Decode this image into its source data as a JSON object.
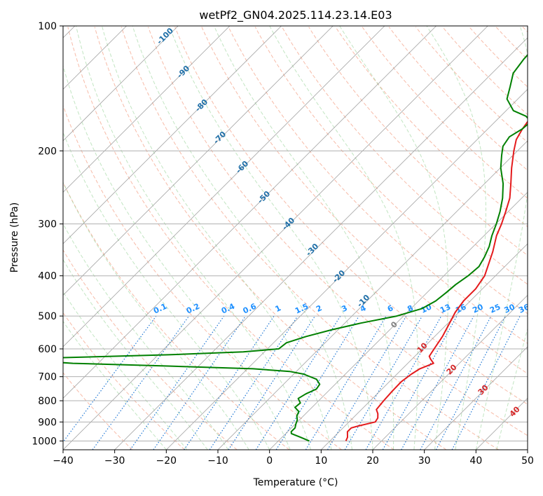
{
  "chart_data": {
    "type": "skew-t",
    "title": "wetPf2_GN04.2025.114.23.14.E03",
    "xlabel": "Temperature (°C)",
    "ylabel": "Pressure (hPa)",
    "xlim": [
      -40,
      50
    ],
    "ylim": [
      1050,
      100
    ],
    "y_scale": "log",
    "grid": true,
    "x_ticks": [
      "−40",
      "−30",
      "−20",
      "−10",
      "0",
      "10",
      "20",
      "30",
      "40",
      "50"
    ],
    "y_ticks": [
      "100",
      "200",
      "300",
      "400",
      "500",
      "600",
      "700",
      "800",
      "900",
      "1000"
    ],
    "series": [
      {
        "role": "temperature",
        "color": "#e41a1c",
        "points": [
          [
            1000,
            13.1
          ],
          [
            980,
            12.7
          ],
          [
            950,
            11.6
          ],
          [
            930,
            11.6
          ],
          [
            920,
            12.6
          ],
          [
            900,
            15.1
          ],
          [
            880,
            14.8
          ],
          [
            860,
            14.0
          ],
          [
            840,
            12.9
          ],
          [
            800,
            12.6
          ],
          [
            760,
            12.4
          ],
          [
            720,
            12.3
          ],
          [
            690,
            12.8
          ],
          [
            670,
            13.4
          ],
          [
            650,
            15.0
          ],
          [
            635,
            13.6
          ],
          [
            625,
            12.8
          ],
          [
            600,
            12.3
          ],
          [
            560,
            11.5
          ],
          [
            520,
            10.3
          ],
          [
            490,
            9.3
          ],
          [
            460,
            8.7
          ],
          [
            430,
            8.7
          ],
          [
            400,
            7.9
          ],
          [
            370,
            6.1
          ],
          [
            350,
            4.8
          ],
          [
            320,
            2.4
          ],
          [
            300,
            1.1
          ],
          [
            280,
            -0.5
          ],
          [
            260,
            -2.3
          ],
          [
            240,
            -4.9
          ],
          [
            220,
            -7.8
          ],
          [
            200,
            -10.7
          ],
          [
            188,
            -12.4
          ],
          [
            177,
            -13.3
          ],
          [
            170,
            -13.7
          ],
          [
            160,
            -12.9
          ],
          [
            150,
            -9.2
          ],
          [
            140,
            -6.1
          ],
          [
            130,
            -2.0
          ],
          [
            120,
            1.5
          ],
          [
            110,
            2.5
          ],
          [
            100,
            3.5
          ]
        ]
      },
      {
        "role": "dewpoint",
        "color": "#008000",
        "points": [
          [
            1000,
            6.0
          ],
          [
            980,
            3.6
          ],
          [
            960,
            1.1
          ],
          [
            950,
            0.7
          ],
          [
            930,
            0.7
          ],
          [
            910,
            0.1
          ],
          [
            890,
            -0.4
          ],
          [
            870,
            -1.3
          ],
          [
            850,
            -1.7
          ],
          [
            830,
            -3.3
          ],
          [
            810,
            -3.1
          ],
          [
            790,
            -4.4
          ],
          [
            770,
            -3.8
          ],
          [
            750,
            -2.7
          ],
          [
            730,
            -3.0
          ],
          [
            710,
            -4.6
          ],
          [
            690,
            -8.1
          ],
          [
            680,
            -11.3
          ],
          [
            670,
            -18.9
          ],
          [
            660,
            -35.9
          ],
          [
            650,
            -54.9
          ],
          [
            640,
            -63.7
          ],
          [
            630,
            -58.3
          ],
          [
            620,
            -38.0
          ],
          [
            610,
            -24.1
          ],
          [
            600,
            -17.8
          ],
          [
            580,
            -17.5
          ],
          [
            560,
            -14.9
          ],
          [
            540,
            -11.3
          ],
          [
            520,
            -6.9
          ],
          [
            500,
            -1.3
          ],
          [
            480,
            2.1
          ],
          [
            460,
            3.3
          ],
          [
            440,
            3.7
          ],
          [
            420,
            4.0
          ],
          [
            400,
            4.7
          ],
          [
            380,
            5.0
          ],
          [
            360,
            4.2
          ],
          [
            340,
            3.1
          ],
          [
            320,
            1.5
          ],
          [
            300,
            0.1
          ],
          [
            280,
            -1.6
          ],
          [
            260,
            -3.7
          ],
          [
            240,
            -6.4
          ],
          [
            220,
            -9.9
          ],
          [
            205,
            -12.2
          ],
          [
            195,
            -13.7
          ],
          [
            185,
            -14.3
          ],
          [
            177,
            -13.3
          ],
          [
            170,
            -13.1
          ],
          [
            165,
            -15.1
          ],
          [
            160,
            -18.6
          ],
          [
            150,
            -22.1
          ],
          [
            140,
            -23.9
          ],
          [
            130,
            -25.9
          ],
          [
            120,
            -26.6
          ],
          [
            110,
            -26.9
          ],
          [
            100,
            -27.9
          ]
        ]
      }
    ],
    "dry_adiabat_labels": [
      "-100",
      "-90",
      "-80",
      "-70",
      "-60",
      "-50",
      "-40",
      "-30",
      "-20",
      "-10"
    ],
    "moist_adiabat_labels": [
      "0",
      "10",
      "20",
      "30",
      "40"
    ],
    "mixing_ratio_labels": [
      "0.1",
      "0.2",
      "0.4",
      "0.6",
      "1",
      "1.5",
      "2",
      "3",
      "4",
      "6",
      "8",
      "10",
      "13",
      "16",
      "20",
      "25",
      "30",
      "36"
    ],
    "colors": {
      "isotherm": "#8c8c8c",
      "dry_adiabat": "#f28e6e",
      "moist_adiabat": "#8fcf8f",
      "mixing_ratio": "#1f77d4",
      "dry_adiabat_label": "#1f6fa8",
      "moist_adiabat_label": "#d62728",
      "zero_label": "#808080",
      "mixing_label": "#1e90ff"
    }
  }
}
